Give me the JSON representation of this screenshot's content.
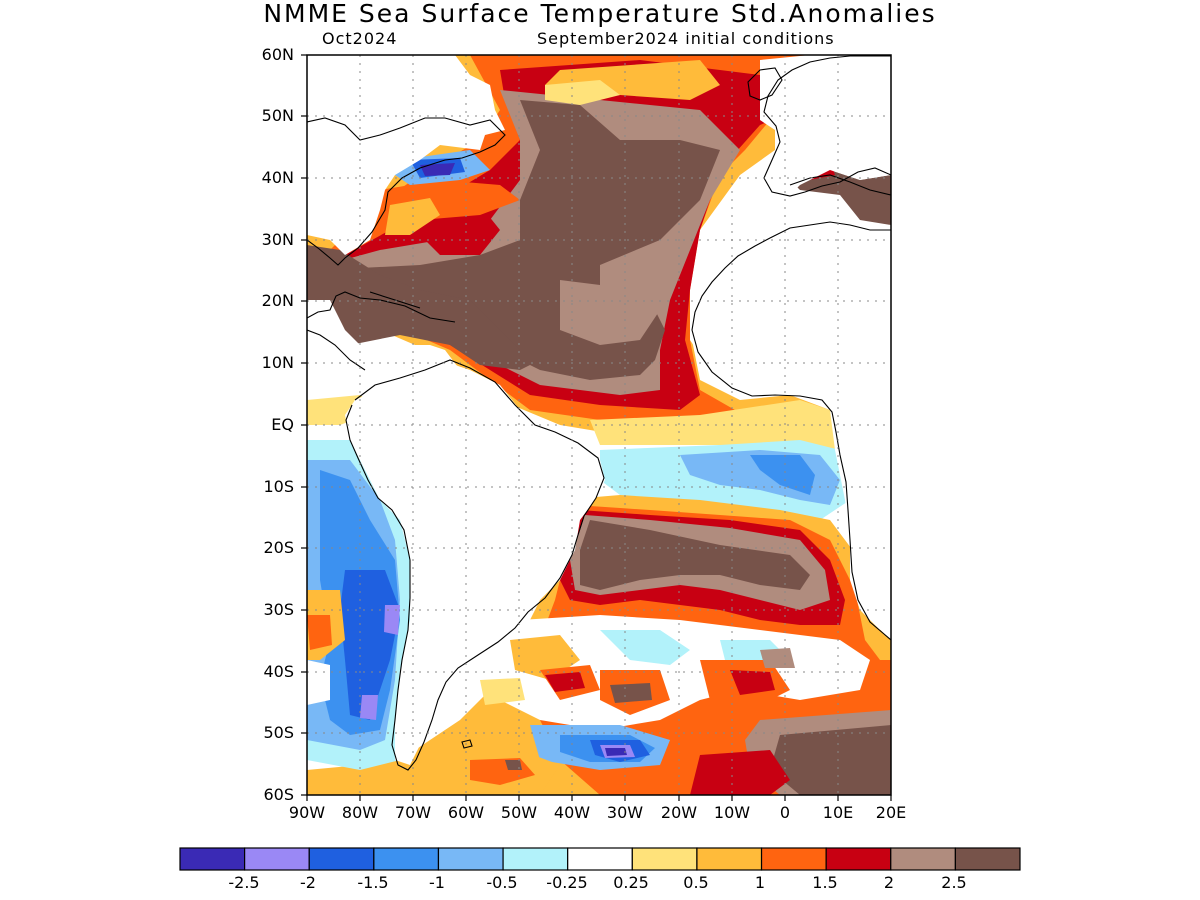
{
  "title": "NMME Sea Surface Temperature Std.Anomalies",
  "subtitle_left": "Oct2024",
  "subtitle_right": "September2024 initial conditions",
  "axes": {
    "lat_labels": [
      "60N",
      "50N",
      "40N",
      "30N",
      "20N",
      "10N",
      "EQ",
      "10S",
      "20S",
      "30S",
      "40S",
      "50S",
      "60S"
    ],
    "lon_labels": [
      "90W",
      "80W",
      "70W",
      "60W",
      "50W",
      "40W",
      "30W",
      "20W",
      "10W",
      "0",
      "10E",
      "20E"
    ],
    "lon_range": [
      -90,
      20
    ],
    "lat_range": [
      -60,
      60
    ],
    "grid": "dotted"
  },
  "colorbar": {
    "colors": [
      "#3a2ab5",
      "#9a88f5",
      "#1f60e0",
      "#3c91f0",
      "#78b8f6",
      "#b2f2fa",
      "#ffffff",
      "#ffe27a",
      "#ffbb3a",
      "#ff6410",
      "#c80012",
      "#b08c7e",
      "#77534a"
    ],
    "labels": [
      "-2.5",
      "-2",
      "-1.5",
      "-1",
      "-0.5",
      "-0.25",
      "0.25",
      "0.5",
      "1",
      "1.5",
      "2",
      "2.5"
    ]
  },
  "regions": [
    {
      "name": "Central/subtropical North Atlantic and Caribbean",
      "anomaly": 2.5
    },
    {
      "name": "Western North Atlantic, Gulf Stream region",
      "anomaly": 1.5
    },
    {
      "name": "Northeast Atlantic near Europe",
      "anomaly": 1.0
    },
    {
      "name": "Equatorial Atlantic",
      "anomaly": 0.0
    },
    {
      "name": "Gulf of Guinea / Angola coast",
      "anomaly": -0.8
    },
    {
      "name": "South Atlantic subtropics 20S-30S",
      "anomaly": 2.5
    },
    {
      "name": "Southeast Pacific off Chile/Peru",
      "anomaly": -1.2
    },
    {
      "name": "Southwest Atlantic 35S-55S",
      "anomaly": 0.5
    },
    {
      "name": "Southeast Atlantic 45S-60S",
      "anomaly": 2.5
    }
  ]
}
